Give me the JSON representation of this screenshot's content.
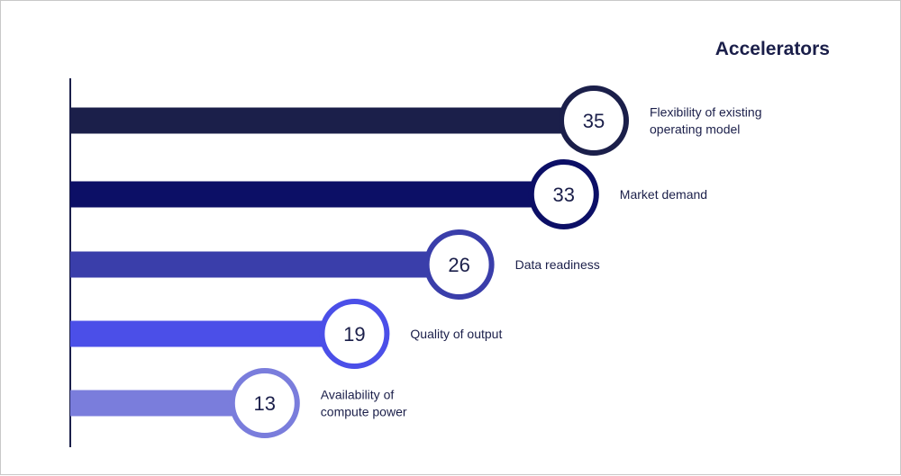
{
  "chart_data": {
    "type": "bar",
    "orientation": "horizontal",
    "title": "Accelerators",
    "categories": [
      [
        "Flexibility of existing",
        "operating model"
      ],
      [
        "Market demand"
      ],
      [
        "Data readiness"
      ],
      [
        "Quality of output"
      ],
      [
        "Availability of",
        "compute power"
      ]
    ],
    "values": [
      35,
      33,
      26,
      19,
      13
    ],
    "colors": [
      "#1b1f4a",
      "#0c0f66",
      "#3a3eaa",
      "#4b4fe8",
      "#7a7ddc"
    ],
    "xlim": [
      0,
      35
    ]
  }
}
